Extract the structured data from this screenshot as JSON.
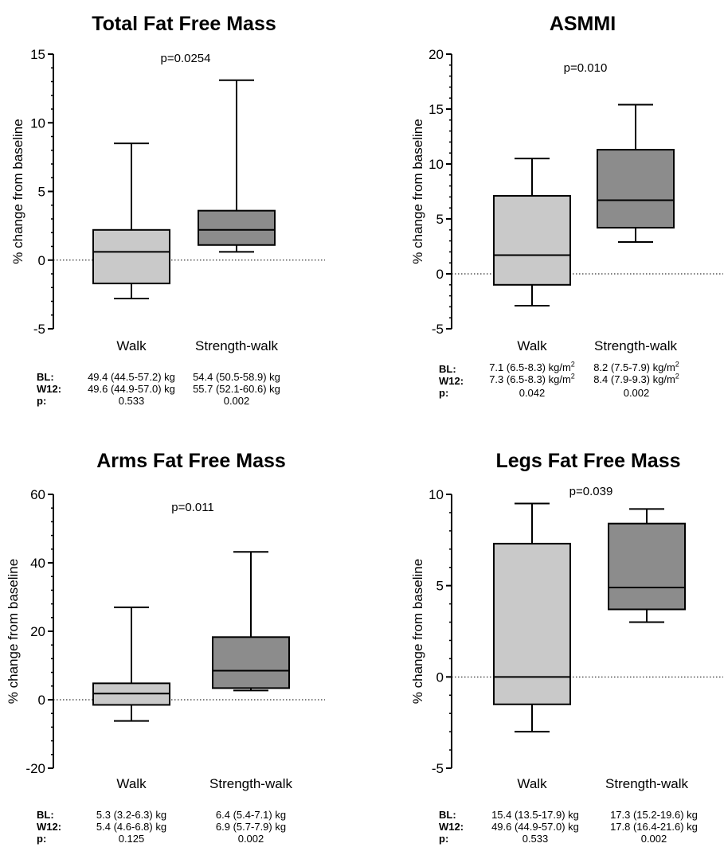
{
  "chart_data": [
    {
      "type": "box",
      "title": "Total Fat Free Mass",
      "annotation": "p=0.0254",
      "ylabel": "% change from baseline",
      "ylim": [
        -5,
        15
      ],
      "yticks": [
        -5,
        0,
        5,
        10,
        15
      ],
      "ytick_labels": [
        "-5",
        "0",
        "5",
        "10",
        "15"
      ],
      "reference_line": 0,
      "categories": [
        "Walk",
        "Strength-walk"
      ],
      "series": [
        {
          "min": -2.8,
          "q1": -1.7,
          "median": 0.6,
          "q3": 2.2,
          "max": 8.5,
          "color": "#c9c9c9"
        },
        {
          "min": 0.6,
          "q1": 1.1,
          "median": 2.2,
          "q3": 3.6,
          "max": 13.1,
          "color": "#8c8c8c"
        }
      ],
      "stats_table": {
        "rows": [
          {
            "label": "BL:",
            "walk": "49.4 (44.5-57.2) kg",
            "strength_walk": "54.4 (50.5-58.9) kg"
          },
          {
            "label": "W12:",
            "walk": "49.6 (44.9-57.0) kg",
            "strength_walk": "55.7 (52.1-60.6) kg"
          },
          {
            "label": "p:",
            "walk": "0.533",
            "strength_walk": "0.002"
          }
        ]
      }
    },
    {
      "type": "box",
      "title": "ASMMI",
      "annotation": "p=0.010",
      "ylabel": "% change from baseline",
      "ylim": [
        -5,
        20
      ],
      "yticks": [
        -5,
        0,
        5,
        10,
        15,
        20
      ],
      "ytick_labels": [
        "-5",
        "0",
        "5",
        "10",
        "15",
        "20"
      ],
      "reference_line": 0,
      "categories": [
        "Walk",
        "Strength-walk"
      ],
      "series": [
        {
          "min": -2.9,
          "q1": -1.0,
          "median": 1.7,
          "q3": 7.1,
          "max": 10.5,
          "color": "#c9c9c9"
        },
        {
          "min": 2.9,
          "q1": 4.2,
          "median": 6.7,
          "q3": 11.3,
          "max": 15.4,
          "color": "#8c8c8c"
        }
      ],
      "stats_table": {
        "unit_superscript": "2",
        "rows": [
          {
            "label": "BL:",
            "walk": "7.1 (6.5-8.3) kg/m",
            "strength_walk": "8.2 (7.5-7.9) kg/m"
          },
          {
            "label": "W12:",
            "walk": "7.3 (6.5-8.3) kg/m",
            "strength_walk": "8.4 (7.9-9.3) kg/m"
          },
          {
            "label": "p:",
            "walk": "0.042",
            "strength_walk": "0.002"
          }
        ]
      }
    },
    {
      "type": "box",
      "title": "Arms Fat Free Mass",
      "annotation": "p=0.011",
      "ylabel": "% change from baseline",
      "ylim": [
        -20,
        60
      ],
      "yticks": [
        -20,
        0,
        20,
        40,
        60
      ],
      "ytick_labels": [
        "-20",
        "0",
        "20",
        "40",
        "60"
      ],
      "reference_line": 0,
      "categories": [
        "Walk",
        "Strength-walk"
      ],
      "series": [
        {
          "min": -6.2,
          "q1": -1.5,
          "median": 1.8,
          "q3": 4.8,
          "max": 27.0,
          "color": "#c9c9c9"
        },
        {
          "min": 2.7,
          "q1": 3.4,
          "median": 8.5,
          "q3": 18.3,
          "max": 43.2,
          "color": "#8c8c8c"
        }
      ],
      "stats_table": {
        "rows": [
          {
            "label": "BL:",
            "walk": "5.3 (3.2-6.3) kg",
            "strength_walk": "6.4 (5.4-7.1) kg"
          },
          {
            "label": "W12:",
            "walk": "5.4 (4.6-6.8) kg",
            "strength_walk": "6.9 (5.7-7.9) kg"
          },
          {
            "label": "p:",
            "walk": "0.125",
            "strength_walk": "0.002"
          }
        ]
      }
    },
    {
      "type": "box",
      "title": "Legs Fat Free Mass",
      "annotation": "p=0.039",
      "ylabel": "% change from baseline",
      "ylim": [
        -5,
        10
      ],
      "yticks": [
        -5,
        0,
        5,
        10
      ],
      "ytick_labels": [
        "-5",
        "0",
        "5",
        "10"
      ],
      "reference_line": 0,
      "categories": [
        "Walk",
        "Strength-walk"
      ],
      "series": [
        {
          "min": -3.0,
          "q1": -1.5,
          "median": 0.0,
          "q3": 7.3,
          "max": 9.5,
          "color": "#c9c9c9"
        },
        {
          "min": 3.0,
          "q1": 3.7,
          "median": 4.9,
          "q3": 8.4,
          "max": 9.2,
          "color": "#8c8c8c"
        }
      ],
      "stats_table": {
        "rows": [
          {
            "label": "BL:",
            "walk": "15.4 (13.5-17.9) kg",
            "strength_walk": "17.3 (15.2-19.6) kg"
          },
          {
            "label": "W12:",
            "walk": "49.6 (44.9-57.0) kg",
            "strength_walk": "17.8 (16.4-21.6) kg"
          },
          {
            "label": "p:",
            "walk": "0.533",
            "strength_walk": "0.002"
          }
        ]
      }
    }
  ]
}
